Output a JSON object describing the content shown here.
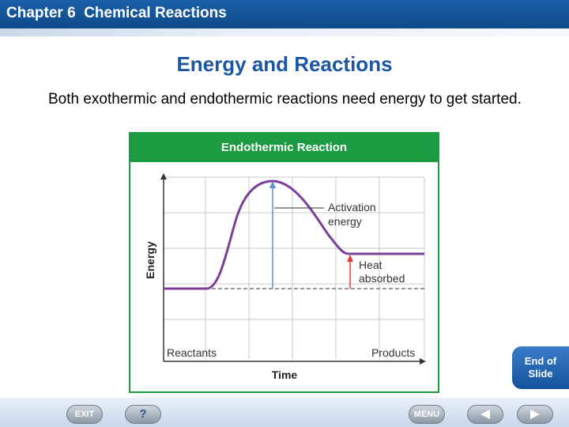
{
  "header": {
    "title": "Chapter 6  Chemical Reactions"
  },
  "slide": {
    "title": "Energy and Reactions",
    "body": "Both exothermic and endothermic reactions need energy to get started."
  },
  "figure": {
    "title": "Endothermic Reaction",
    "y_axis_label": "Energy",
    "x_axis_label": "Time",
    "reactants_label": "Reactants",
    "products_label": "Products",
    "activation_label_1": "Activation",
    "activation_label_2": "energy",
    "heat_label_1": "Heat",
    "heat_label_2": "absorbed",
    "colors": {
      "curve": "#7b3f98",
      "activation_arrow": "#5b8fcf",
      "heat_arrow": "#e03a3a",
      "frame": "#1d9b42"
    }
  },
  "navigation": {
    "exit_label": "EXIT",
    "help_label": "?",
    "menu_label": "MENU",
    "back_icon": "left-arrow-icon",
    "forward_icon": "right-arrow-icon",
    "end_of_slide_line1": "End of",
    "end_of_slide_line2": "Slide"
  }
}
